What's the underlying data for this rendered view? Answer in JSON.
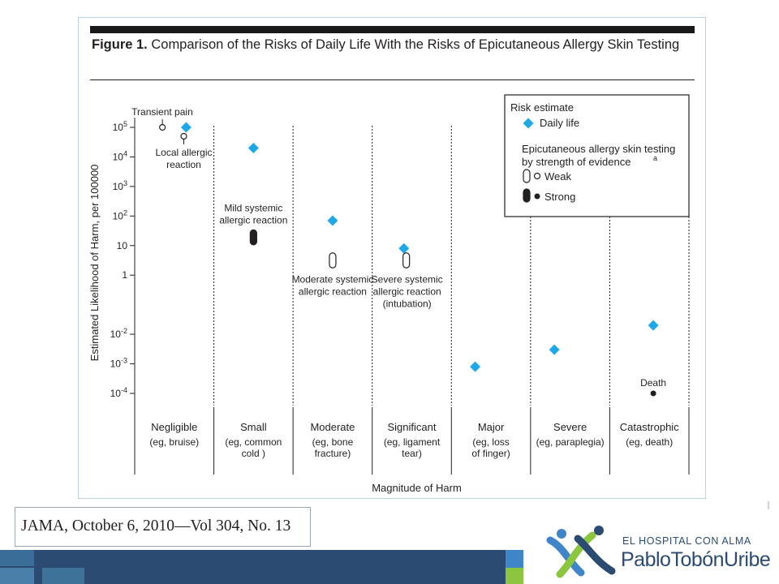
{
  "figure": {
    "title_bold": "Figure 1.",
    "title_text": " Comparison of the Risks of Daily Life With the Risks of Epicutaneous Allergy Skin Testing"
  },
  "chart_data": {
    "type": "scatter",
    "title": "Comparison of the Risks of Daily Life With the Risks of Epicutaneous Allergy Skin Testing",
    "xlabel": "Magnitude of Harm",
    "ylabel": "Estimated Likelihood of Harm, per 100000",
    "y_scale": "log",
    "ylim": [
      0.0001,
      100000
    ],
    "y_ticks": [
      {
        "value": 100000,
        "base": "10",
        "exp": "5"
      },
      {
        "value": 10000,
        "base": "10",
        "exp": "4"
      },
      {
        "value": 1000,
        "base": "10",
        "exp": "3"
      },
      {
        "value": 100,
        "base": "10",
        "exp": "2"
      },
      {
        "value": 10,
        "base": "10",
        "exp": ""
      },
      {
        "value": 1,
        "base": "1",
        "exp": ""
      },
      {
        "value": 0.01,
        "base": "10",
        "exp": "-2"
      },
      {
        "value": 0.001,
        "base": "10",
        "exp": "-3"
      },
      {
        "value": 0.0001,
        "base": "10",
        "exp": "-4"
      }
    ],
    "categories": [
      {
        "name": "Negligible",
        "example": [
          "(eg, bruise)"
        ]
      },
      {
        "name": "Small",
        "example": [
          "(eg, common",
          "cold )"
        ]
      },
      {
        "name": "Moderate",
        "example": [
          "(eg, bone",
          "fracture)"
        ]
      },
      {
        "name": "Significant",
        "example": [
          "(eg, ligament",
          "tear)"
        ]
      },
      {
        "name": "Major",
        "example": [
          "(eg, loss",
          "of finger)"
        ]
      },
      {
        "name": "Severe",
        "example": [
          "(eg, paraplegia)"
        ]
      },
      {
        "name": "Catastrophic",
        "example": [
          "(eg, death)"
        ]
      }
    ],
    "series": [
      {
        "name": "Daily life",
        "marker": "diamond",
        "color": "#1ea8e6",
        "points": [
          {
            "category": 0,
            "y": 100000,
            "offset": 0.15
          },
          {
            "category": 1,
            "y": 20000,
            "offset": 0
          },
          {
            "category": 2,
            "y": 70,
            "offset": 0
          },
          {
            "category": 3,
            "y": 8,
            "offset": -0.1
          },
          {
            "category": 4,
            "y": 0.0008,
            "offset": -0.2
          },
          {
            "category": 5,
            "y": 0.003,
            "offset": -0.2
          },
          {
            "category": 6,
            "y": 0.02,
            "offset": 0.05
          }
        ]
      },
      {
        "name": "Epicutaneous allergy skin testing",
        "points": [
          {
            "category": 0,
            "y": 100000,
            "offset": -0.15,
            "evidence": "Weak",
            "shape": "circle",
            "label": [
              "Transient pain"
            ]
          },
          {
            "category": 0,
            "y": 50000,
            "offset": 0.12,
            "evidence": "Weak",
            "shape": "circle",
            "label": [
              "Local allergic",
              "reaction"
            ]
          },
          {
            "category": 1,
            "y_low": 12,
            "y_high": 30,
            "evidence": "Strong",
            "shape": "range",
            "label": [
              "Mild systemic",
              "allergic reaction"
            ]
          },
          {
            "category": 2,
            "y_low": 2,
            "y_high": 5,
            "evidence": "Weak",
            "shape": "range",
            "label": [
              "Moderate systemic",
              "allergic reaction"
            ]
          },
          {
            "category": 3,
            "y_low": 2,
            "y_high": 5,
            "evidence": "Weak",
            "shape": "range",
            "offset": -0.07,
            "label": [
              "Severe systemic",
              "allergic reaction",
              "(intubation)"
            ]
          },
          {
            "category": 6,
            "y": 0.0001,
            "offset": 0.05,
            "evidence": "Strong",
            "shape": "circle",
            "label": [
              "Death"
            ]
          }
        ]
      }
    ],
    "legend": {
      "position": "top-right",
      "title": "Risk estimate",
      "daily_life": "Daily life",
      "testing_title": [
        "Epicutaneous allergy skin testing",
        "by strength of evidence"
      ],
      "superscript": "a",
      "weak": "Weak",
      "strong": "Strong"
    },
    "grid": false
  },
  "citation": "JAMA, October 6, 2010—Vol 304, No. 13",
  "logo": {
    "tagline": "EL HOSPITAL CON ALMA",
    "name": "PabloTobónUribe"
  },
  "colors": {
    "daily_life": "#1ea8e6",
    "footer_bar": "#2c4b73",
    "footer_accent_blue": "#3e86c7",
    "footer_accent_green": "#8cc63f",
    "logo_blue": "#2c4b73",
    "logo_green": "#8cc63f",
    "logo_lightblue": "#3e86c7"
  }
}
